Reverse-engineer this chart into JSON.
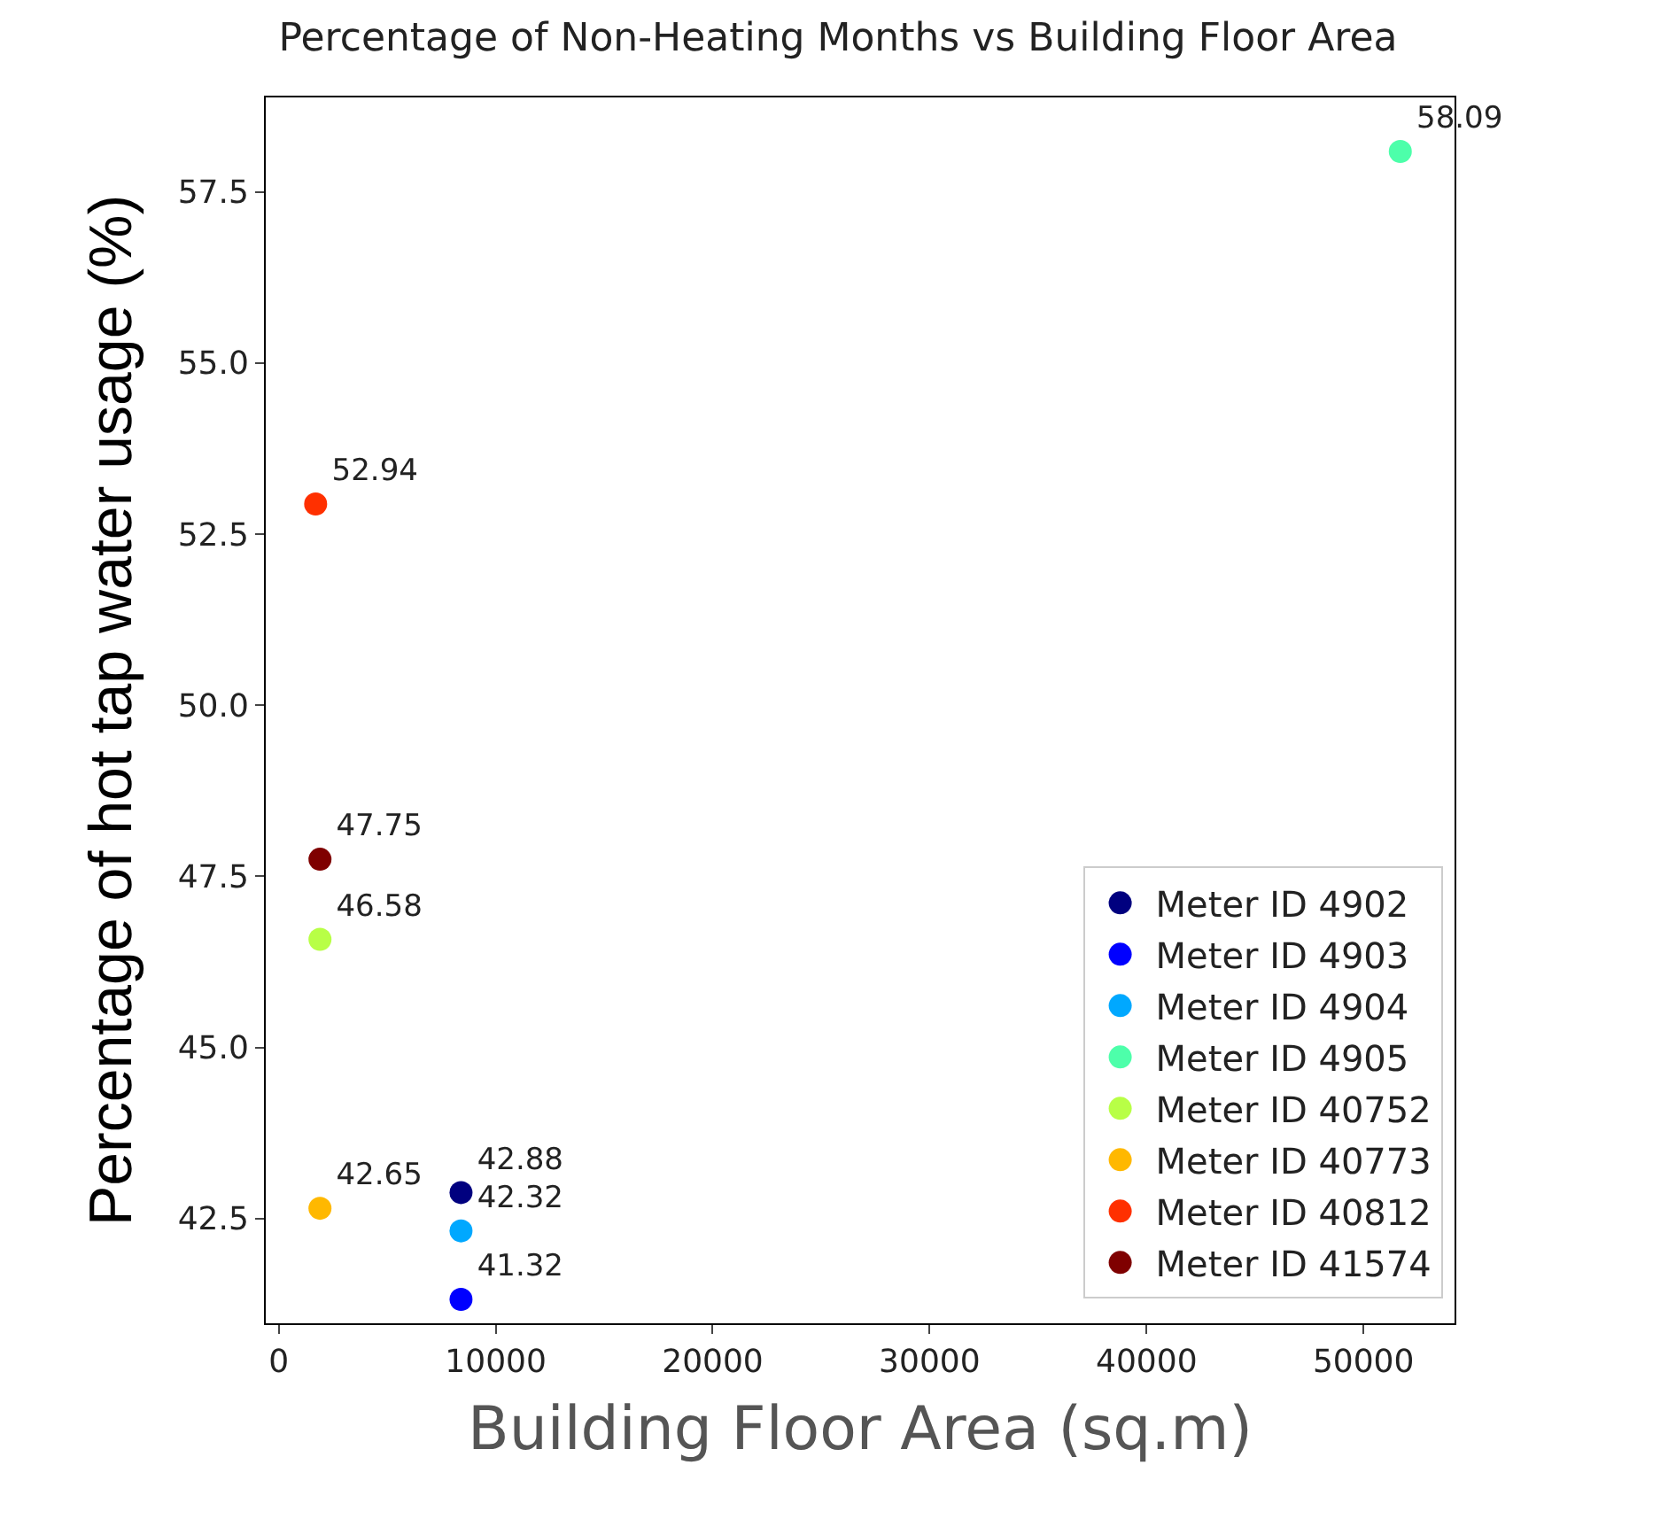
{
  "chart_data": {
    "type": "scatter",
    "title": "Percentage of Non-Heating Months vs Building Floor Area",
    "xlabel": "Building Floor Area (sq.m)",
    "ylabel": "Percentage of hot tap water usage (%)",
    "series": [
      {
        "name": "Meter ID 4902",
        "color": "#00007f",
        "x": [
          8400
        ],
        "values": [
          42.88
        ]
      },
      {
        "name": "Meter ID 4903",
        "color": "#0000ff",
        "x": [
          8400
        ],
        "values": [
          41.32
        ]
      },
      {
        "name": "Meter ID 4904",
        "color": "#00a8ff",
        "x": [
          8400
        ],
        "values": [
          42.32
        ]
      },
      {
        "name": "Meter ID 4905",
        "color": "#4dffaa",
        "x": [
          51700
        ],
        "values": [
          58.09
        ]
      },
      {
        "name": "Meter ID 40752",
        "color": "#b8ff46",
        "x": [
          1900
        ],
        "values": [
          46.58
        ]
      },
      {
        "name": "Meter ID 40773",
        "color": "#ffb800",
        "x": [
          1900
        ],
        "values": [
          42.65
        ]
      },
      {
        "name": "Meter ID 40812",
        "color": "#ff3000",
        "x": [
          1700
        ],
        "values": [
          52.94
        ]
      },
      {
        "name": "Meter ID 41574",
        "color": "#7f0000",
        "x": [
          1900
        ],
        "values": [
          47.75
        ]
      }
    ],
    "data_labels": true,
    "marker": "circle",
    "legend": "bottom right",
    "xlim": [
      -600,
      54200
    ],
    "xticks": [
      0,
      10000,
      20000,
      30000,
      40000,
      50000
    ],
    "ylim": [
      40.97,
      58.88
    ],
    "yticks": [
      {
        "value": 42.5,
        "label": "42.5"
      },
      {
        "value": 45,
        "label": "45.0"
      },
      {
        "value": 47.5,
        "label": "47.5"
      },
      {
        "value": 50,
        "label": "50.0"
      },
      {
        "value": 52.5,
        "label": "52.5"
      },
      {
        "value": 55,
        "label": "55.0"
      },
      {
        "value": 57.5,
        "label": "57.5"
      }
    ]
  }
}
